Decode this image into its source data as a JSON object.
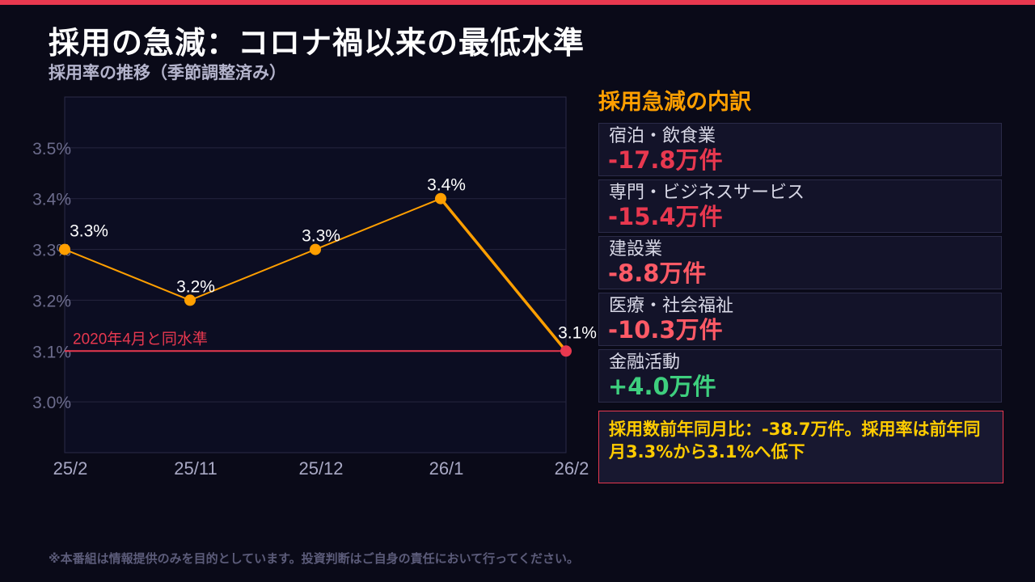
{
  "header": {
    "title": "採用の急減：コロナ禍以来の最低水準",
    "subtitle": "採用率の推移（季節調整済み）",
    "accent": "#e8384f"
  },
  "chart_data": {
    "type": "line",
    "categories": [
      "25/2",
      "25/11",
      "25/12",
      "26/1",
      "26/2"
    ],
    "values": [
      3.3,
      3.2,
      3.3,
      3.4,
      3.1
    ],
    "data_labels": [
      "3.3%",
      "3.2%",
      "3.3%",
      "3.4%",
      "3.1%"
    ],
    "yticks": [
      3.0,
      3.1,
      3.2,
      3.3,
      3.4,
      3.5
    ],
    "ytick_labels": [
      "3.0%",
      "3.1%",
      "3.2%",
      "3.3%",
      "3.4%",
      "3.5%"
    ],
    "ylim": [
      2.9,
      3.6
    ],
    "grid": true,
    "line_color": "#ff9f00",
    "highlight_color": "#e8384f",
    "reference_line": {
      "value": 3.1,
      "label": "2020年4月と同水準"
    }
  },
  "breakdown": {
    "title": "採用急減の内訳",
    "items": [
      {
        "label": "宿泊・飲食業",
        "value": "-17.8万件",
        "color": "#e8384f"
      },
      {
        "label": "専門・ビジネスサービス",
        "value": "-15.4万件",
        "color": "#e8384f"
      },
      {
        "label": "建設業",
        "value": "-8.8万件",
        "color": "#ff5a66"
      },
      {
        "label": "医療・社会福祉",
        "value": "-10.3万件",
        "color": "#ff5a66"
      },
      {
        "label": "金融活動",
        "value": "+4.0万件",
        "color": "#3ecf7e"
      }
    ],
    "summary": "採用数前年同月比：-38.7万件。採用率は前年同月3.3%から3.1%へ低下"
  },
  "footer": {
    "disclaimer": "※本番組は情報提供のみを目的としています。投資判断はご自身の責任において行ってください。"
  }
}
